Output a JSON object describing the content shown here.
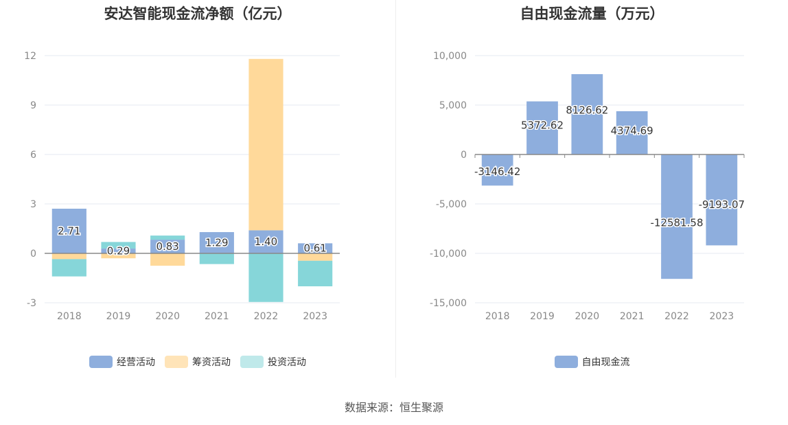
{
  "source": "数据来源：恒生聚源",
  "chart_data": [
    {
      "type": "bar",
      "stacked": true,
      "title": "安达智能现金流净额（亿元）",
      "categories": [
        "2018",
        "2019",
        "2020",
        "2021",
        "2022",
        "2023"
      ],
      "ylim": [
        -3,
        12
      ],
      "yticks": [
        -3,
        0,
        3,
        6,
        9,
        12
      ],
      "grid": true,
      "legend_position": "bottom",
      "series": [
        {
          "name": "经营活动",
          "color": "#8eaedd",
          "values": [
            2.71,
            0.29,
            0.83,
            1.29,
            1.4,
            0.61
          ],
          "labels": [
            "2.71",
            "0.29",
            "0.83",
            "1.29",
            "1.40",
            "0.61"
          ]
        },
        {
          "name": "筹资活动",
          "color": "#ffd99a",
          "values": [
            -0.35,
            -0.3,
            -0.75,
            0.0,
            10.4,
            -0.45
          ],
          "labels": []
        },
        {
          "name": "投资活动",
          "color": "#86d6d9",
          "values": [
            -1.05,
            0.4,
            0.25,
            -0.65,
            -2.95,
            -1.55
          ],
          "labels": []
        }
      ],
      "legend_colors": [
        "#8eaedd",
        "#ffe4b8",
        "#bfe9ea"
      ]
    },
    {
      "type": "bar",
      "title": "自由现金流量（万元）",
      "categories": [
        "2018",
        "2019",
        "2020",
        "2021",
        "2022",
        "2023"
      ],
      "ylim": [
        -15000,
        10000
      ],
      "yticks": [
        -15000,
        -10000,
        -5000,
        0,
        5000,
        10000
      ],
      "ytick_labels": [
        "-15,000",
        "-10,000",
        "-5,000",
        "0",
        "5,000",
        "10,000"
      ],
      "grid": true,
      "legend_position": "bottom",
      "series": [
        {
          "name": "自由现金流",
          "color": "#8eaedd",
          "values": [
            -3146.42,
            5372.62,
            8126.62,
            4374.69,
            -12581.58,
            -9193.07
          ],
          "labels": [
            "-3146.42",
            "5372.62",
            "8126.62",
            "4374.69",
            "-12581.58",
            "-9193.07"
          ]
        }
      ]
    }
  ]
}
